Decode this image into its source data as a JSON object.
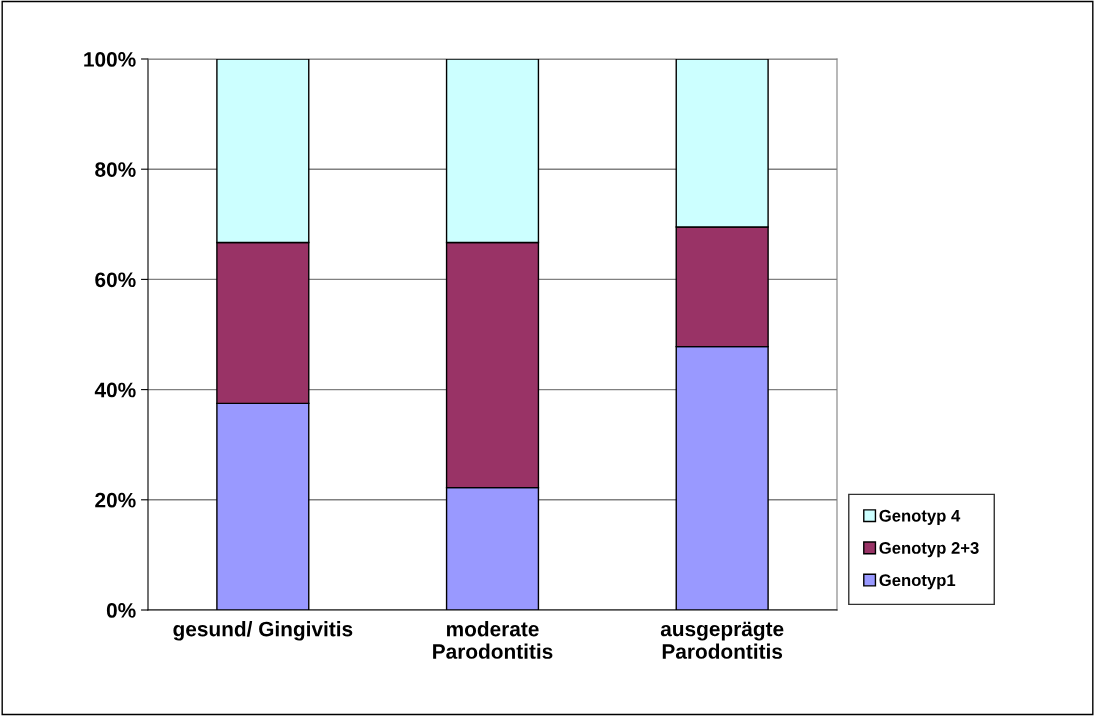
{
  "chart_data": {
    "type": "bar",
    "stacked": true,
    "categories": [
      "gesund/ Gingivitis",
      "moderate\nParodontitis",
      "ausgeprägte\nParodontitis"
    ],
    "series": [
      {
        "name": "Genotyp1",
        "color": "#9999ff",
        "values": [
          37.5,
          22.2,
          47.8
        ]
      },
      {
        "name": "Genotyp 2+3",
        "color": "#993366",
        "values": [
          29.2,
          44.5,
          21.7
        ]
      },
      {
        "name": "Genotyp 4",
        "color": "#ccffff",
        "values": [
          33.3,
          33.3,
          30.5
        ]
      }
    ],
    "ylim": [
      0,
      100
    ],
    "yticks": [
      {
        "value": 0,
        "label": "0%"
      },
      {
        "value": 20,
        "label": "20%"
      },
      {
        "value": 40,
        "label": "40%"
      },
      {
        "value": 60,
        "label": "60%"
      },
      {
        "value": 80,
        "label": "80%"
      },
      {
        "value": 100,
        "label": "100%"
      }
    ],
    "grid": "y",
    "legend": "right"
  }
}
